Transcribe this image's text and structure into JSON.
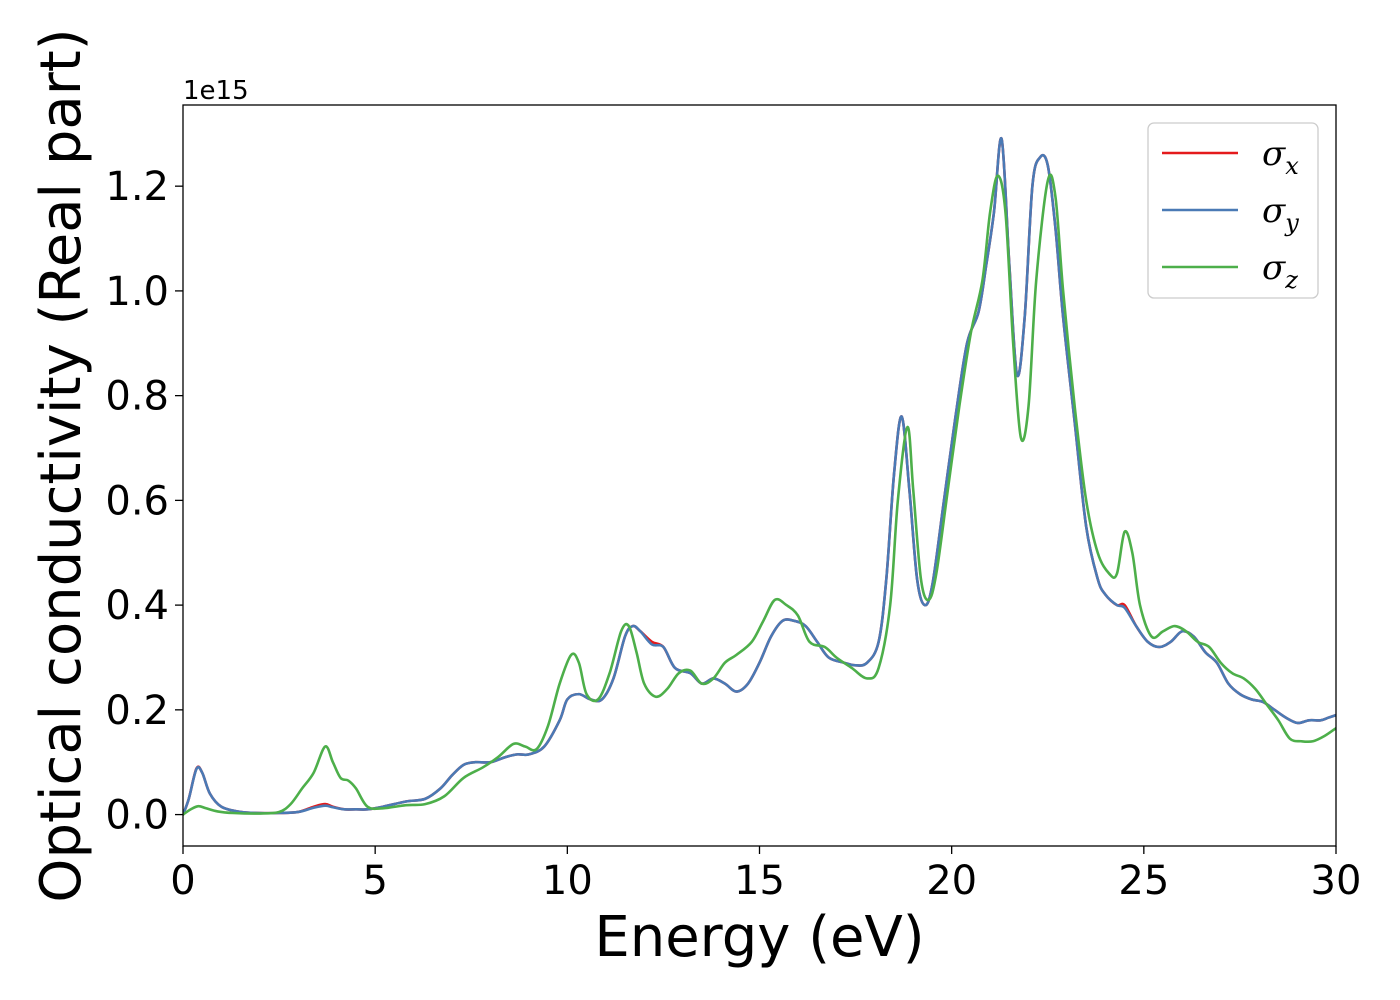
{
  "chart_data": {
    "type": "line",
    "title": "",
    "xlabel": "Energy (eV)",
    "ylabel": "Optical conductivity (Real part)",
    "y_offset_label": "1e15",
    "xlim": [
      0,
      30
    ],
    "ylim": [
      -0.06,
      1.355
    ],
    "x_ticks": [
      0,
      5,
      10,
      15,
      20,
      25,
      30
    ],
    "x_tick_labels": [
      "0",
      "5",
      "10",
      "15",
      "20",
      "25",
      "30"
    ],
    "y_ticks": [
      0.0,
      0.2,
      0.4,
      0.6,
      0.8,
      1.0,
      1.2
    ],
    "y_tick_labels": [
      "0.0",
      "0.2",
      "0.4",
      "0.6",
      "0.8",
      "1.0",
      "1.2"
    ],
    "grid": false,
    "legend_position": "top-right",
    "series": [
      {
        "name": "σx",
        "legend_symbol": "σ",
        "legend_subscript": "x",
        "color": "#e41a1c",
        "x": [
          0,
          0.15,
          0.35,
          0.5,
          0.7,
          1.0,
          1.5,
          2.0,
          2.5,
          3.0,
          3.4,
          3.7,
          3.9,
          4.2,
          4.5,
          4.8,
          5.2,
          5.8,
          6.3,
          6.7,
          7.0,
          7.3,
          7.6,
          8.0,
          8.4,
          8.7,
          9.0,
          9.4,
          9.8,
          10.0,
          10.3,
          10.6,
          10.9,
          11.2,
          11.5,
          11.7,
          11.9,
          12.2,
          12.5,
          12.8,
          13.2,
          13.5,
          13.8,
          14.1,
          14.4,
          14.7,
          15.0,
          15.3,
          15.6,
          15.9,
          16.2,
          16.5,
          16.8,
          17.2,
          17.5,
          17.8,
          18.1,
          18.3,
          18.5,
          18.7,
          18.9,
          19.1,
          19.3,
          19.5,
          19.8,
          20.1,
          20.4,
          20.7,
          20.9,
          21.1,
          21.3,
          21.5,
          21.7,
          21.9,
          22.1,
          22.3,
          22.5,
          22.7,
          22.9,
          23.2,
          23.5,
          23.8,
          24.0,
          24.3,
          24.5,
          24.8,
          25.1,
          25.4,
          25.7,
          26.0,
          26.3,
          26.6,
          26.9,
          27.2,
          27.5,
          27.8,
          28.1,
          28.4,
          28.7,
          29.0,
          29.3,
          29.6,
          29.8,
          30.0
        ],
        "values": [
          0.0,
          0.03,
          0.088,
          0.08,
          0.04,
          0.015,
          0.005,
          0.003,
          0.003,
          0.005,
          0.015,
          0.02,
          0.015,
          0.01,
          0.01,
          0.01,
          0.015,
          0.025,
          0.03,
          0.05,
          0.075,
          0.095,
          0.1,
          0.1,
          0.11,
          0.115,
          0.115,
          0.13,
          0.18,
          0.22,
          0.23,
          0.22,
          0.22,
          0.26,
          0.34,
          0.36,
          0.35,
          0.33,
          0.32,
          0.28,
          0.27,
          0.25,
          0.26,
          0.25,
          0.235,
          0.25,
          0.29,
          0.34,
          0.37,
          0.37,
          0.36,
          0.33,
          0.3,
          0.29,
          0.285,
          0.29,
          0.33,
          0.45,
          0.65,
          0.76,
          0.62,
          0.45,
          0.4,
          0.44,
          0.6,
          0.76,
          0.9,
          0.96,
          1.05,
          1.15,
          1.29,
          1.05,
          0.84,
          0.95,
          1.2,
          1.255,
          1.24,
          1.12,
          0.95,
          0.75,
          0.55,
          0.45,
          0.42,
          0.4,
          0.4,
          0.36,
          0.33,
          0.32,
          0.33,
          0.35,
          0.34,
          0.31,
          0.29,
          0.25,
          0.23,
          0.22,
          0.215,
          0.2,
          0.185,
          0.175,
          0.18,
          0.18,
          0.185,
          0.19
        ]
      },
      {
        "name": "σy",
        "legend_symbol": "σ",
        "legend_subscript": "y",
        "color": "#4a7ab5",
        "x": [
          0,
          0.15,
          0.35,
          0.5,
          0.7,
          1.0,
          1.5,
          2.0,
          2.5,
          3.0,
          3.4,
          3.7,
          3.9,
          4.2,
          4.5,
          4.8,
          5.2,
          5.8,
          6.3,
          6.7,
          7.0,
          7.3,
          7.6,
          8.0,
          8.4,
          8.7,
          9.0,
          9.4,
          9.8,
          10.0,
          10.3,
          10.6,
          10.9,
          11.2,
          11.5,
          11.7,
          11.9,
          12.2,
          12.5,
          12.8,
          13.2,
          13.5,
          13.8,
          14.1,
          14.4,
          14.7,
          15.0,
          15.3,
          15.6,
          15.9,
          16.2,
          16.5,
          16.8,
          17.2,
          17.5,
          17.8,
          18.1,
          18.3,
          18.5,
          18.7,
          18.9,
          19.1,
          19.3,
          19.5,
          19.8,
          20.1,
          20.4,
          20.7,
          20.9,
          21.1,
          21.3,
          21.5,
          21.7,
          21.9,
          22.1,
          22.3,
          22.5,
          22.7,
          22.9,
          23.2,
          23.5,
          23.8,
          24.0,
          24.3,
          24.5,
          24.8,
          25.1,
          25.4,
          25.7,
          26.0,
          26.3,
          26.6,
          26.9,
          27.2,
          27.5,
          27.8,
          28.1,
          28.4,
          28.7,
          29.0,
          29.3,
          29.6,
          29.8,
          30.0
        ],
        "values": [
          0.0,
          0.03,
          0.087,
          0.08,
          0.04,
          0.015,
          0.005,
          0.003,
          0.003,
          0.005,
          0.013,
          0.017,
          0.014,
          0.01,
          0.01,
          0.01,
          0.015,
          0.025,
          0.03,
          0.05,
          0.075,
          0.095,
          0.1,
          0.1,
          0.11,
          0.115,
          0.115,
          0.13,
          0.18,
          0.22,
          0.23,
          0.22,
          0.22,
          0.26,
          0.34,
          0.36,
          0.35,
          0.325,
          0.32,
          0.28,
          0.27,
          0.25,
          0.26,
          0.25,
          0.235,
          0.25,
          0.29,
          0.34,
          0.37,
          0.37,
          0.36,
          0.33,
          0.3,
          0.29,
          0.285,
          0.29,
          0.33,
          0.45,
          0.65,
          0.76,
          0.62,
          0.45,
          0.4,
          0.44,
          0.6,
          0.76,
          0.9,
          0.96,
          1.05,
          1.15,
          1.29,
          1.05,
          0.84,
          0.95,
          1.2,
          1.255,
          1.24,
          1.12,
          0.95,
          0.75,
          0.55,
          0.45,
          0.42,
          0.4,
          0.395,
          0.36,
          0.33,
          0.32,
          0.33,
          0.35,
          0.34,
          0.31,
          0.29,
          0.25,
          0.23,
          0.22,
          0.215,
          0.2,
          0.185,
          0.175,
          0.18,
          0.18,
          0.185,
          0.19
        ]
      },
      {
        "name": "σz",
        "legend_symbol": "σ",
        "legend_subscript": "z",
        "color": "#4daf4a",
        "x": [
          0,
          0.2,
          0.4,
          0.6,
          0.9,
          1.3,
          2.0,
          2.5,
          2.8,
          3.1,
          3.4,
          3.7,
          3.9,
          4.1,
          4.3,
          4.5,
          4.8,
          5.2,
          5.8,
          6.3,
          6.8,
          7.3,
          7.8,
          8.2,
          8.6,
          8.9,
          9.2,
          9.5,
          9.8,
          10.1,
          10.3,
          10.5,
          10.8,
          11.1,
          11.4,
          11.6,
          11.8,
          12.0,
          12.3,
          12.6,
          12.9,
          13.2,
          13.5,
          13.8,
          14.1,
          14.4,
          14.8,
          15.1,
          15.4,
          15.7,
          16.0,
          16.3,
          16.7,
          17.0,
          17.4,
          17.8,
          18.1,
          18.4,
          18.6,
          18.85,
          19.0,
          19.2,
          19.4,
          19.6,
          19.9,
          20.2,
          20.5,
          20.8,
          21.0,
          21.2,
          21.4,
          21.6,
          21.8,
          22.0,
          22.2,
          22.5,
          22.7,
          22.9,
          23.2,
          23.5,
          23.8,
          24.1,
          24.3,
          24.5,
          24.7,
          24.9,
          25.2,
          25.5,
          25.8,
          26.1,
          26.4,
          26.7,
          27.0,
          27.3,
          27.6,
          27.9,
          28.2,
          28.5,
          28.8,
          29.1,
          29.4,
          29.7,
          30.0
        ],
        "values": [
          0.0,
          0.01,
          0.016,
          0.012,
          0.006,
          0.003,
          0.002,
          0.005,
          0.02,
          0.05,
          0.08,
          0.13,
          0.1,
          0.07,
          0.065,
          0.05,
          0.015,
          0.012,
          0.018,
          0.02,
          0.035,
          0.07,
          0.09,
          0.11,
          0.135,
          0.13,
          0.125,
          0.17,
          0.25,
          0.305,
          0.29,
          0.23,
          0.22,
          0.27,
          0.35,
          0.36,
          0.31,
          0.25,
          0.225,
          0.24,
          0.27,
          0.275,
          0.25,
          0.26,
          0.29,
          0.305,
          0.33,
          0.37,
          0.41,
          0.4,
          0.38,
          0.33,
          0.32,
          0.3,
          0.28,
          0.26,
          0.28,
          0.4,
          0.6,
          0.74,
          0.62,
          0.45,
          0.41,
          0.46,
          0.62,
          0.78,
          0.92,
          1.02,
          1.15,
          1.22,
          1.15,
          0.9,
          0.72,
          0.78,
          1.02,
          1.21,
          1.18,
          1.0,
          0.78,
          0.6,
          0.5,
          0.46,
          0.46,
          0.54,
          0.5,
          0.4,
          0.34,
          0.35,
          0.36,
          0.35,
          0.33,
          0.32,
          0.29,
          0.27,
          0.26,
          0.24,
          0.21,
          0.18,
          0.145,
          0.14,
          0.14,
          0.15,
          0.165
        ]
      }
    ]
  }
}
